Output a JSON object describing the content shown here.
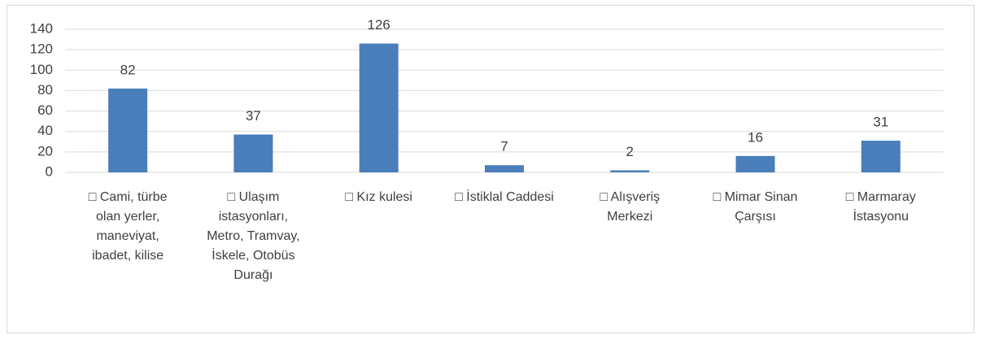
{
  "chart_data": {
    "type": "bar",
    "categories": [
      "□ Cami, türbe olan yerler, maneviyat, ibadet, kilise",
      "□ Ulaşım istasyonları, Metro, Tramvay, İskele, Otobüs Durağı",
      "□ Kız kulesi",
      "□ İstiklal Caddesi",
      "□ Alışveriş Merkezi",
      "□ Mimar Sinan Çarşısı",
      "□ Marmaray İstasyonu"
    ],
    "values": [
      82,
      37,
      126,
      7,
      2,
      16,
      31
    ],
    "color": "#4a7ebb",
    "ylim": [
      0,
      140
    ],
    "yticks": [
      0,
      20,
      40,
      60,
      80,
      100,
      120,
      140
    ],
    "grid": true
  }
}
